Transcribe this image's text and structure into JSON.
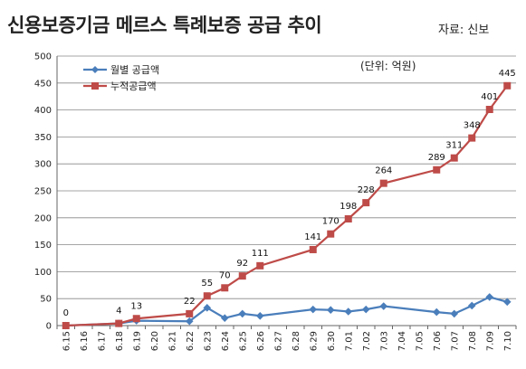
{
  "chart_data": {
    "type": "line",
    "title": "신용보증기금 메르스 특례보증 공급 추이",
    "source": "자료: 신보",
    "unit_label": "(단위: 억원)",
    "ylim": [
      0,
      500
    ],
    "yticks": [
      0,
      50,
      100,
      150,
      200,
      250,
      300,
      350,
      400,
      450,
      500
    ],
    "grid": true,
    "legend_position": "top-left",
    "categories": [
      "6.15",
      "6.16",
      "6.17",
      "6.18",
      "6.19",
      "6.20",
      "6.21",
      "6.22",
      "6.23",
      "6.24",
      "6.25",
      "6.26",
      "6.27",
      "6.28",
      "6.29",
      "6.30",
      "7.01",
      "7.02",
      "7.03",
      "7.04",
      "7.05",
      "7.06",
      "7.07",
      "7.08",
      "7.09",
      "7.10"
    ],
    "series": [
      {
        "name": "월별 공급액",
        "color": "#4a7ebb",
        "marker": "diamond",
        "x": [
          "6.15",
          "6.18",
          "6.19",
          "6.22",
          "6.23",
          "6.24",
          "6.25",
          "6.26",
          "6.29",
          "6.30",
          "7.01",
          "7.02",
          "7.03",
          "7.06",
          "7.07",
          "7.08",
          "7.09",
          "7.10"
        ],
        "values": [
          0,
          4,
          9,
          8,
          33,
          14,
          22,
          18,
          30,
          29,
          26,
          30,
          36,
          25,
          22,
          37,
          53,
          44
        ]
      },
      {
        "name": "누적공급액",
        "color": "#be4b48",
        "marker": "square",
        "x": [
          "6.15",
          "6.18",
          "6.19",
          "6.22",
          "6.23",
          "6.24",
          "6.25",
          "6.26",
          "6.29",
          "6.30",
          "7.01",
          "7.02",
          "7.03",
          "7.06",
          "7.07",
          "7.08",
          "7.09",
          "7.10"
        ],
        "values": [
          0,
          4,
          13,
          22,
          55,
          70,
          92,
          111,
          141,
          170,
          198,
          228,
          264,
          289,
          311,
          348,
          401,
          445
        ],
        "labels": [
          "0",
          "4",
          "13",
          "22",
          "55",
          "70",
          "92",
          "111",
          "141",
          "170",
          "198",
          "228",
          "264",
          "289",
          "311",
          "348",
          "401",
          "445"
        ]
      }
    ]
  }
}
